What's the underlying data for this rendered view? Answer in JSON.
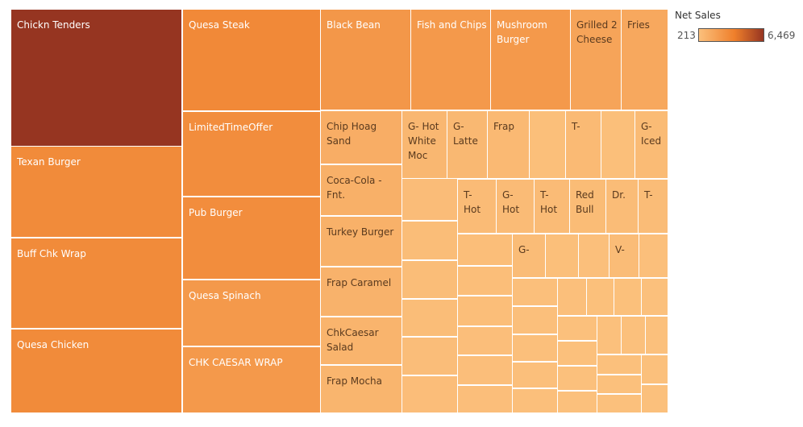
{
  "chart_data": {
    "type": "treemap",
    "legend": {
      "title": "Net Sales",
      "min_label": "213",
      "max_label": "6,469",
      "min_value": 213,
      "max_value": 6469,
      "color_low": "#fbc07c",
      "color_high": "#963521"
    },
    "categories": [
      "Chickn Tenders",
      "Texan Burger",
      "Buff Chk Wrap",
      "Quesa Chicken",
      "Quesa Steak",
      "LimitedTimeOffer",
      "Pub Burger",
      "Quesa Spinach",
      "CHK CAESAR WRAP",
      "Black Bean",
      "Fish and Chips",
      "Mushroom\nBurger",
      "Grilled 2\nCheese",
      "Fries",
      "Chip Hoag\nSand",
      "Coca-Cola - Fnt.",
      "Turkey Burger",
      "Frap Caramel",
      "ChkCaesar\nSalad",
      "Frap Mocha",
      "G- Hot\nWhite\nMoc",
      "G-\nLatte",
      "Frap",
      "T-",
      "G-\nIced",
      "T-\nHot",
      "G-\nHot",
      "T-\nHot",
      "Red\nBull",
      "Dr.",
      "T-",
      "G-",
      "V-"
    ],
    "values": [
      6469,
      3000,
      3000,
      3000,
      3100,
      2900,
      2900,
      2300,
      2300,
      2400,
      2300,
      2300,
      1700,
      1500,
      1200,
      1050,
      1000,
      950,
      850,
      800,
      700,
      650,
      600,
      550,
      500,
      480,
      470,
      460,
      450,
      440,
      430,
      420,
      410
    ],
    "unlabeled_values": [
      400,
      390,
      380,
      370,
      360,
      350,
      340,
      330,
      320,
      310,
      300,
      295,
      290,
      285,
      280,
      275,
      270,
      265,
      260,
      255,
      250,
      245,
      240,
      238,
      235,
      232,
      230,
      228,
      226,
      224,
      222,
      220,
      218,
      217,
      216,
      215,
      214,
      213
    ]
  }
}
